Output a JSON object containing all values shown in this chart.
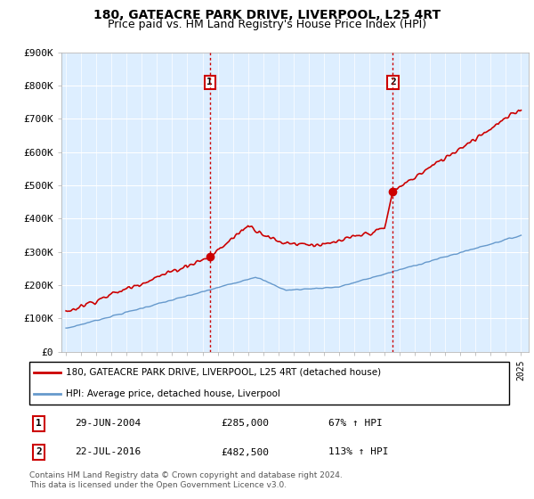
{
  "title": "180, GATEACRE PARK DRIVE, LIVERPOOL, L25 4RT",
  "subtitle": "Price paid vs. HM Land Registry's House Price Index (HPI)",
  "ylim": [
    0,
    900000
  ],
  "yticks": [
    0,
    100000,
    200000,
    300000,
    400000,
    500000,
    600000,
    700000,
    800000,
    900000
  ],
  "ytick_labels": [
    "£0",
    "£100K",
    "£200K",
    "£300K",
    "£400K",
    "£500K",
    "£600K",
    "£700K",
    "£800K",
    "£900K"
  ],
  "bg_color": "#ddeeff",
  "red_color": "#cc0000",
  "blue_color": "#6699cc",
  "marker1_date": 2004.49,
  "marker1_price": 285000,
  "marker2_date": 2016.55,
  "marker2_price": 482500,
  "legend_line1": "180, GATEACRE PARK DRIVE, LIVERPOOL, L25 4RT (detached house)",
  "legend_line2": "HPI: Average price, detached house, Liverpool",
  "table_row1": [
    "1",
    "29-JUN-2004",
    "£285,000",
    "67% ↑ HPI"
  ],
  "table_row2": [
    "2",
    "22-JUL-2016",
    "£482,500",
    "113% ↑ HPI"
  ],
  "footer": "Contains HM Land Registry data © Crown copyright and database right 2024.\nThis data is licensed under the Open Government Licence v3.0.",
  "title_fontsize": 10,
  "subtitle_fontsize": 9
}
